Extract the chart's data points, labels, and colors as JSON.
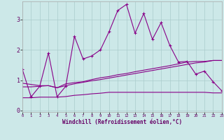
{
  "xlabel": "Windchill (Refroidissement éolien,°C)",
  "background_color": "#cce8e8",
  "line_color": "#880088",
  "grid_color": "#aacccc",
  "xlim": [
    0,
    23
  ],
  "ylim": [
    -0.05,
    3.6
  ],
  "x_ticks": [
    0,
    1,
    2,
    3,
    4,
    5,
    6,
    7,
    8,
    9,
    10,
    11,
    12,
    13,
    14,
    15,
    16,
    17,
    18,
    19,
    20,
    21,
    22,
    23
  ],
  "y_ticks": [
    0,
    1,
    2,
    3
  ],
  "series1_x": [
    0,
    1,
    2,
    3,
    4,
    5,
    6,
    7,
    8,
    9,
    10,
    11,
    12,
    13,
    14,
    15,
    16,
    17,
    18,
    19,
    20,
    21,
    22,
    23
  ],
  "series1_y": [
    1.35,
    0.45,
    0.8,
    1.9,
    0.45,
    0.8,
    2.45,
    1.7,
    1.8,
    2.0,
    2.6,
    3.3,
    3.5,
    2.55,
    3.2,
    2.35,
    2.9,
    2.15,
    1.6,
    1.62,
    1.2,
    1.3,
    0.95,
    0.65
  ],
  "series2_x": [
    0,
    2,
    3,
    4,
    5,
    6,
    7,
    8,
    9,
    10,
    11,
    12,
    13,
    14,
    15,
    16,
    17,
    19,
    20,
    21,
    22,
    23
  ],
  "series2_y": [
    0.9,
    0.82,
    0.82,
    0.75,
    0.88,
    0.92,
    0.95,
    1.02,
    1.08,
    1.12,
    1.18,
    1.22,
    1.28,
    1.33,
    1.38,
    1.43,
    1.48,
    1.6,
    1.62,
    1.62,
    1.65,
    1.65
  ],
  "series3_x": [
    0,
    1,
    2,
    3,
    4,
    5,
    6,
    7,
    8,
    9,
    10,
    11,
    12,
    13,
    14,
    15,
    16,
    17,
    18,
    19,
    20,
    21,
    22,
    23
  ],
  "series3_y": [
    0.78,
    0.78,
    0.8,
    0.82,
    0.75,
    0.82,
    0.88,
    0.93,
    0.98,
    1.02,
    1.07,
    1.12,
    1.17,
    1.22,
    1.27,
    1.32,
    1.37,
    1.42,
    1.47,
    1.52,
    1.57,
    1.6,
    1.65,
    1.65
  ],
  "series4_x": [
    0,
    1,
    2,
    3,
    4,
    5,
    6,
    7,
    8,
    9,
    10,
    11,
    12,
    13,
    14,
    15,
    16,
    17,
    18,
    19,
    20,
    21,
    22,
    23
  ],
  "series4_y": [
    0.42,
    0.42,
    0.44,
    0.44,
    0.44,
    0.46,
    0.5,
    0.52,
    0.55,
    0.57,
    0.6,
    0.6,
    0.6,
    0.6,
    0.6,
    0.6,
    0.6,
    0.6,
    0.6,
    0.6,
    0.6,
    0.6,
    0.58,
    0.58
  ]
}
